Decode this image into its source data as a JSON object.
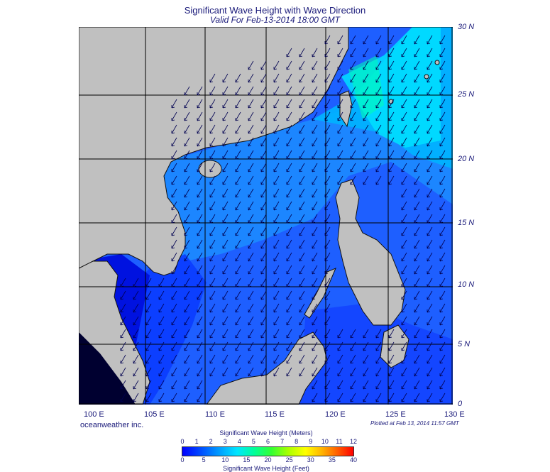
{
  "title": "Significant Wave Height with Wave Direction",
  "subtitle": "Valid For Feb-13-2014 18:00 GMT",
  "lat_labels": [
    "30 N",
    "25 N",
    "20 N",
    "15 N",
    "10 N",
    "5 N",
    "0"
  ],
  "lon_labels": [
    "100 E",
    "105 E",
    "110 E",
    "115 E",
    "120 E",
    "125 E",
    "130 E"
  ],
  "credit": "oceanweather inc.",
  "plotted": "Plotted at Feb 13, 2014 11:57 GMT",
  "legend": {
    "title_meters": "Significant Wave Height (Meters)",
    "title_feet": "Significant Wave Height (Feet)",
    "meters_ticks": [
      "0",
      "1",
      "2",
      "3",
      "4",
      "5",
      "6",
      "7",
      "8",
      "9",
      "10",
      "11",
      "12"
    ],
    "feet_ticks": [
      "0",
      "5",
      "10",
      "15",
      "20",
      "25",
      "30",
      "35",
      "40"
    ]
  },
  "colors": {
    "land": "#c0c0c0",
    "deep_blue": "#0000ff",
    "mid_blue": "#1e6dff",
    "light_blue": "#00b4ff",
    "cyan": "#00e6ff",
    "green": "#00ffa0",
    "frame": "#1a1a7a"
  },
  "wave_direction": "southwest"
}
